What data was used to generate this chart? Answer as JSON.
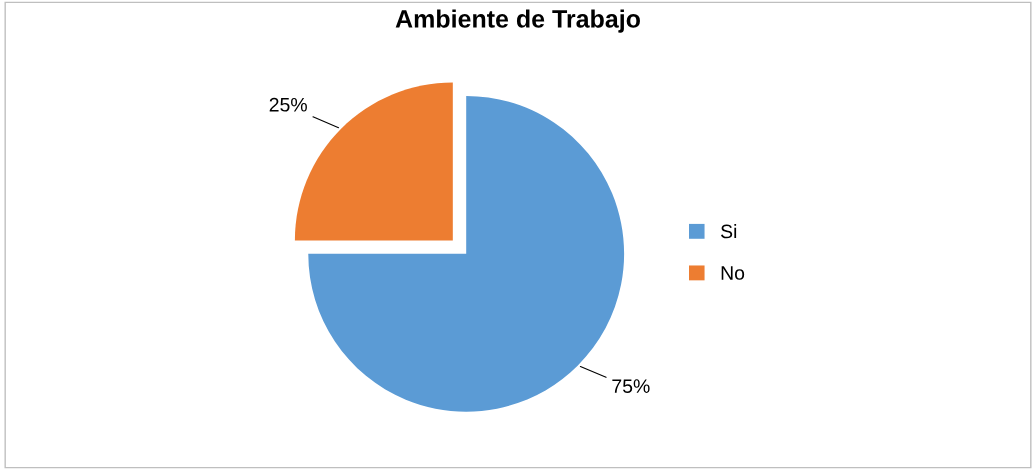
{
  "chart_data": {
    "type": "pie",
    "title": "Ambiente de Trabajo",
    "categories": [
      "Si",
      "No"
    ],
    "values": [
      75,
      25
    ],
    "colors": [
      "#5b9bd5",
      "#ed7d31"
    ],
    "value_labels": [
      "75%",
      "25%"
    ],
    "legend": "right"
  }
}
